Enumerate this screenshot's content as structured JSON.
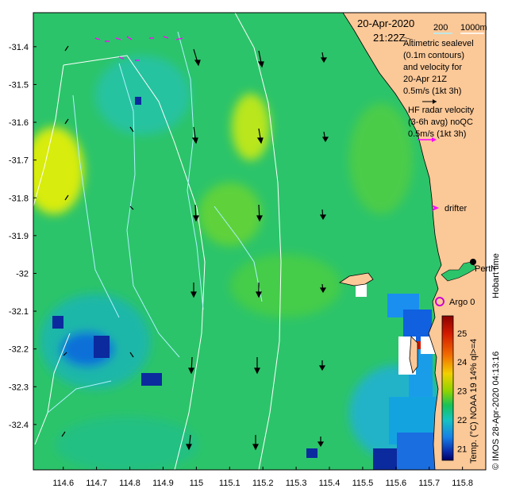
{
  "header": {
    "date": "20-Apr-2020",
    "time": "21:22Z"
  },
  "scale_legend": {
    "values": [
      "200",
      "1000m"
    ]
  },
  "legend": {
    "altimetric_lines": [
      "Altimetric sealevel",
      "(0.1m contours)",
      "and velocity for",
      "20-Apr 21Z",
      "0.5m/s (1kt 3h)"
    ],
    "hf_lines": [
      "HF radar velocity",
      "(3-6h avg) noQC",
      "0.5m/s (1kt 3h)"
    ],
    "drifter": "drifter",
    "argo": "Argo 0"
  },
  "place_labels": {
    "perth": "Perth",
    "hobart_time": "Hobart time"
  },
  "credit": "© IMOS 28-Apr-2020 04:13:16",
  "colorbar": {
    "label": "Temp. (°C) NOAA 19 14% ql>=4",
    "ticks": [
      "25",
      "24",
      "23",
      "22",
      "21"
    ],
    "tick_values": [
      25,
      24,
      23,
      22,
      21
    ]
  },
  "axes": {
    "lat_ticks": [
      "-31.4",
      "-31.5",
      "-31.6",
      "-31.7",
      "-31.8",
      "-31.9",
      "-32",
      "-32.1",
      "-32.2",
      "-32.3",
      "-32.4"
    ],
    "lat_values": [
      -31.4,
      -31.5,
      -31.6,
      -31.7,
      -31.8,
      -31.9,
      -32.0,
      -32.1,
      -32.2,
      -32.3,
      -32.4
    ],
    "lon_ticks": [
      "114.6",
      "114.7",
      "114.8",
      "114.9",
      "115",
      "115.1",
      "115.2",
      "115.3",
      "115.4",
      "115.5",
      "115.6",
      "115.7",
      "115.8"
    ],
    "lon_values": [
      114.6,
      114.7,
      114.8,
      114.9,
      115.0,
      115.1,
      115.2,
      115.3,
      115.4,
      115.5,
      115.6,
      115.7,
      115.8
    ],
    "lon_range": [
      114.51,
      115.87
    ],
    "lat_range": [
      -32.52,
      -31.31
    ]
  },
  "colors": {
    "land": "#fbc898",
    "hf_arrow": "#ff00ff",
    "argo": "#cc00cc",
    "contour_shallow": "#aef2ff",
    "contour_deep": "#ffffff"
  }
}
